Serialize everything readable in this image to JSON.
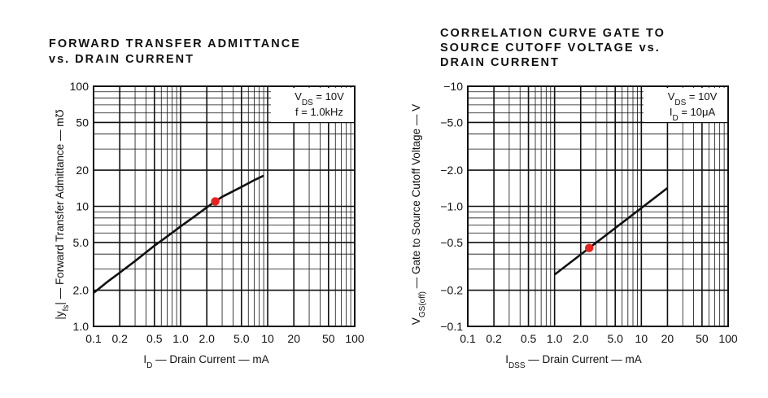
{
  "chart_data": [
    {
      "type": "line",
      "title_lines": [
        "FORWARD TRANSFER ADMITTANCE",
        "vs. DRAIN CURRENT"
      ],
      "xlabel": {
        "main": "I",
        "sub": "D",
        "rest": " — Drain Current — mA"
      },
      "ylabel": {
        "main": "|y",
        "sub": "fs",
        "rest": "| — Forward Transfer Admittance — mƱ"
      },
      "x_scale": "log",
      "y_scale": "log",
      "xlim": [
        0.1,
        100
      ],
      "ylim": [
        1.0,
        100
      ],
      "x_ticks": [
        {
          "value": 0.1,
          "label": "0.1"
        },
        {
          "value": 0.2,
          "label": "0.2"
        },
        {
          "value": 0.5,
          "label": "0.5"
        },
        {
          "value": 1.0,
          "label": "1.0"
        },
        {
          "value": 2.0,
          "label": "2.0"
        },
        {
          "value": 5.0,
          "label": "5.0"
        },
        {
          "value": 10,
          "label": "10"
        },
        {
          "value": 20,
          "label": "20"
        },
        {
          "value": 50,
          "label": "50"
        },
        {
          "value": 100,
          "label": "100"
        }
      ],
      "y_ticks": [
        {
          "value": 1.0,
          "label": "1.0"
        },
        {
          "value": 2.0,
          "label": "2.0"
        },
        {
          "value": 5.0,
          "label": "5.0"
        },
        {
          "value": 10,
          "label": "10"
        },
        {
          "value": 20,
          "label": "20"
        },
        {
          "value": 50,
          "label": "50"
        },
        {
          "value": 100,
          "label": "100"
        }
      ],
      "conditions": [
        {
          "main": "V",
          "sub": "DS",
          "rest": " = 10V"
        },
        {
          "main": "",
          "sub": "",
          "rest": "f = 1.0kHz"
        }
      ],
      "series": [
        {
          "x": [
            0.1,
            0.15,
            0.2,
            0.3,
            0.5,
            0.7,
            1.0,
            1.5,
            2.0,
            2.5,
            3.0,
            5.0,
            7.0,
            9.0
          ],
          "y": [
            1.9,
            2.4,
            2.8,
            3.5,
            4.7,
            5.6,
            6.8,
            8.4,
            9.8,
            11.0,
            12.0,
            14.5,
            16.5,
            18.0
          ]
        }
      ],
      "marker": {
        "x": 2.5,
        "y": 11.0,
        "color": "#e8231e"
      },
      "grid": true
    },
    {
      "type": "line",
      "title_lines": [
        "CORRELATION CURVE GATE TO",
        "SOURCE CUTOFF VOLTAGE vs.",
        "DRAIN CURRENT"
      ],
      "xlabel": {
        "main": "I",
        "sub": "DSS",
        "rest": " — Drain Current — mA"
      },
      "ylabel": {
        "main": "V",
        "sub": "GS(off)",
        "rest": " — Gate to Source Cutoff Voltage — V"
      },
      "x_scale": "log",
      "y_scale": "log",
      "xlim": [
        0.1,
        100
      ],
      "ylim": [
        0.1,
        10
      ],
      "x_ticks": [
        {
          "value": 0.1,
          "label": "0.1"
        },
        {
          "value": 0.2,
          "label": "0.2"
        },
        {
          "value": 0.5,
          "label": "0.5"
        },
        {
          "value": 1.0,
          "label": "1.0"
        },
        {
          "value": 2.0,
          "label": "2.0"
        },
        {
          "value": 5.0,
          "label": "5.0"
        },
        {
          "value": 10,
          "label": "10"
        },
        {
          "value": 20,
          "label": "20"
        },
        {
          "value": 50,
          "label": "50"
        },
        {
          "value": 100,
          "label": "100"
        }
      ],
      "y_ticks": [
        {
          "value": 0.1,
          "label": "−0.1"
        },
        {
          "value": 0.2,
          "label": "−0.2"
        },
        {
          "value": 0.5,
          "label": "−0.5"
        },
        {
          "value": 1.0,
          "label": "−1.0"
        },
        {
          "value": 2.0,
          "label": "−2.0"
        },
        {
          "value": 5.0,
          "label": "−5.0"
        },
        {
          "value": 10,
          "label": "−10"
        }
      ],
      "conditions": [
        {
          "main": "V",
          "sub": "DS",
          "rest": " = 10V"
        },
        {
          "main": "I",
          "sub": "D",
          "rest": " = 10μA"
        }
      ],
      "series": [
        {
          "x": [
            1.0,
            20
          ],
          "y": [
            0.27,
            1.42
          ]
        }
      ],
      "marker": {
        "x": 2.5,
        "y": 0.45,
        "color": "#e8231e"
      },
      "grid": true
    }
  ]
}
